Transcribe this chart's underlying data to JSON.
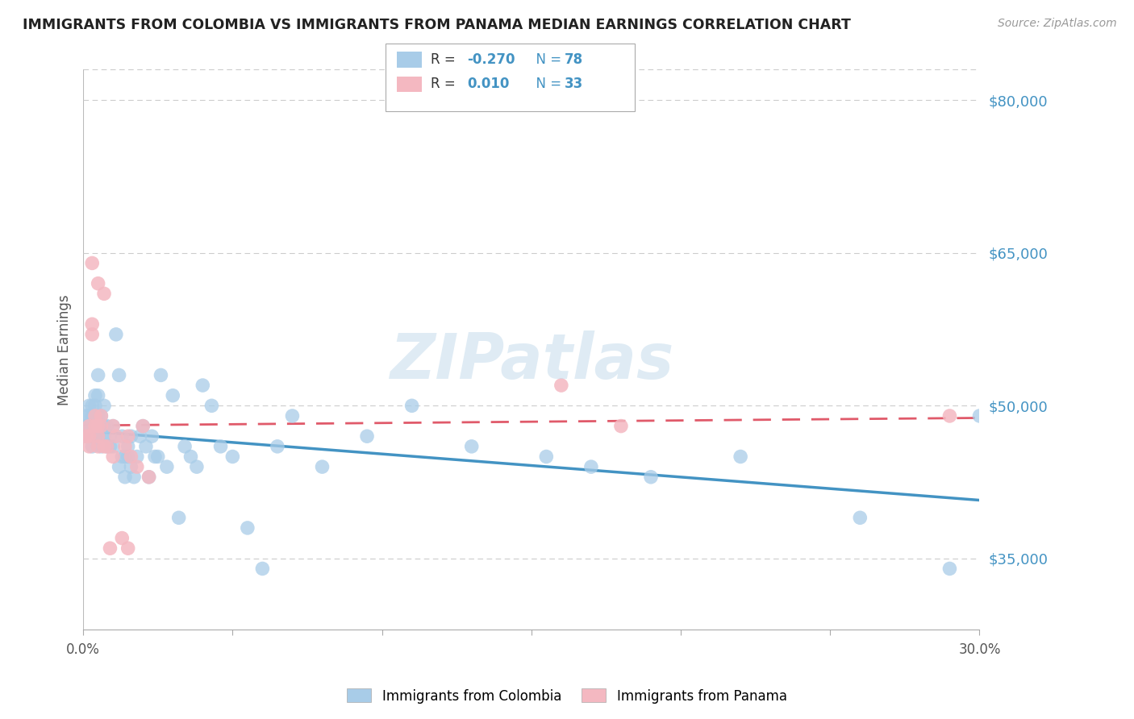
{
  "title": "IMMIGRANTS FROM COLOMBIA VS IMMIGRANTS FROM PANAMA MEDIAN EARNINGS CORRELATION CHART",
  "source": "Source: ZipAtlas.com",
  "ylabel": "Median Earnings",
  "xlim": [
    0.0,
    0.3
  ],
  "ylim": [
    28000,
    83000
  ],
  "yticks": [
    35000,
    50000,
    65000,
    80000
  ],
  "ytick_labels": [
    "$35,000",
    "$50,000",
    "$65,000",
    "$80,000"
  ],
  "xticks": [
    0.0,
    0.05,
    0.1,
    0.15,
    0.2,
    0.25,
    0.3
  ],
  "xtick_labels": [
    "0.0%",
    "",
    "",
    "",
    "",
    "",
    "30.0%"
  ],
  "colombia_color": "#a8cce8",
  "panama_color": "#f4b8c1",
  "colombia_line_color": "#4393c3",
  "panama_line_color": "#e05a6a",
  "colombia_R": -0.27,
  "colombia_N": 78,
  "panama_R": 0.01,
  "panama_N": 33,
  "watermark": "ZIPatlas",
  "colombia_x": [
    0.001,
    0.001,
    0.001,
    0.002,
    0.002,
    0.002,
    0.002,
    0.003,
    0.003,
    0.003,
    0.003,
    0.003,
    0.004,
    0.004,
    0.004,
    0.004,
    0.005,
    0.005,
    0.005,
    0.005,
    0.006,
    0.006,
    0.006,
    0.007,
    0.007,
    0.007,
    0.008,
    0.008,
    0.009,
    0.009,
    0.01,
    0.01,
    0.011,
    0.012,
    0.012,
    0.013,
    0.013,
    0.014,
    0.014,
    0.015,
    0.015,
    0.016,
    0.016,
    0.017,
    0.018,
    0.019,
    0.02,
    0.021,
    0.022,
    0.023,
    0.024,
    0.025,
    0.026,
    0.028,
    0.03,
    0.032,
    0.034,
    0.036,
    0.038,
    0.04,
    0.043,
    0.046,
    0.05,
    0.055,
    0.06,
    0.065,
    0.07,
    0.08,
    0.095,
    0.11,
    0.13,
    0.155,
    0.17,
    0.19,
    0.22,
    0.26,
    0.29,
    0.3
  ],
  "colombia_y": [
    49000,
    48000,
    47000,
    50000,
    49000,
    48000,
    47000,
    50000,
    49000,
    48000,
    47000,
    46000,
    51000,
    50000,
    48000,
    47000,
    53000,
    51000,
    49000,
    47000,
    49000,
    48000,
    46000,
    50000,
    48000,
    47000,
    48000,
    46000,
    47000,
    46000,
    48000,
    46000,
    57000,
    53000,
    44000,
    47000,
    45000,
    45000,
    43000,
    46000,
    45000,
    47000,
    44000,
    43000,
    45000,
    47000,
    48000,
    46000,
    43000,
    47000,
    45000,
    45000,
    53000,
    44000,
    51000,
    39000,
    46000,
    45000,
    44000,
    52000,
    50000,
    46000,
    45000,
    38000,
    34000,
    46000,
    49000,
    44000,
    47000,
    50000,
    46000,
    45000,
    44000,
    43000,
    45000,
    39000,
    34000,
    49000
  ],
  "panama_x": [
    0.001,
    0.002,
    0.002,
    0.002,
    0.003,
    0.003,
    0.004,
    0.004,
    0.005,
    0.005,
    0.005,
    0.006,
    0.006,
    0.007,
    0.008,
    0.009,
    0.01,
    0.011,
    0.013,
    0.014,
    0.015,
    0.015,
    0.016,
    0.018,
    0.02,
    0.022,
    0.16,
    0.003,
    0.005,
    0.007,
    0.01,
    0.18,
    0.29
  ],
  "panama_y": [
    47000,
    48000,
    47000,
    46000,
    58000,
    57000,
    49000,
    48000,
    48000,
    47000,
    46000,
    49000,
    48000,
    46000,
    46000,
    36000,
    45000,
    47000,
    37000,
    46000,
    47000,
    36000,
    45000,
    44000,
    48000,
    43000,
    52000,
    64000,
    62000,
    61000,
    48000,
    48000,
    49000
  ]
}
